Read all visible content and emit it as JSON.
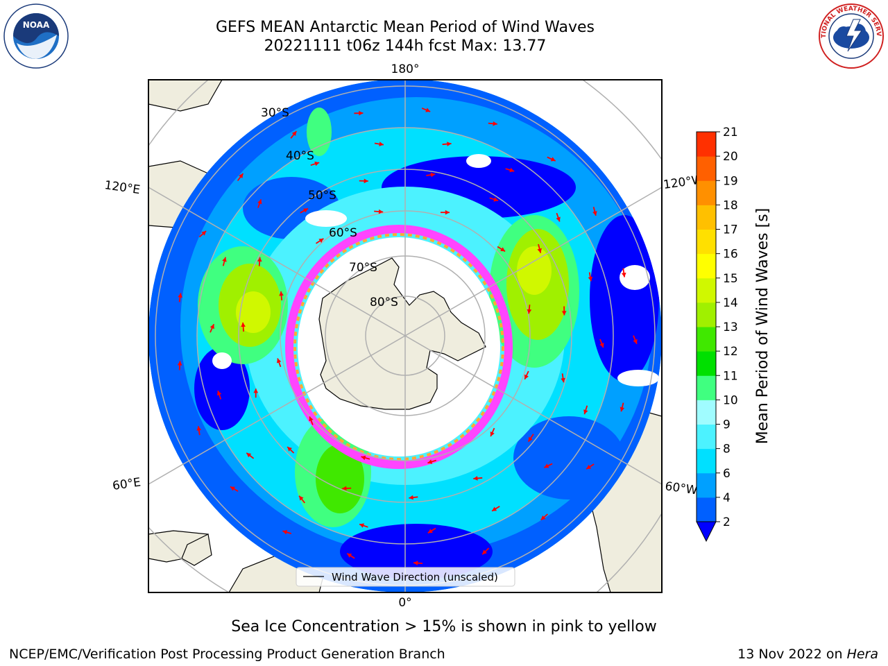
{
  "header": {
    "title_line1": "GEFS MEAN Antarctic Mean Period of Wind Waves",
    "title_line2": "20221111 t06z 144h fcst   Max: 13.77"
  },
  "logos": {
    "left": "noaa-logo",
    "left_ring_text": "NATIONAL OCEANIC AND ATMOSPHERIC ADMINISTRATION · U.S. DEPARTMENT OF COMMERCE",
    "left_center_text": "NOAA",
    "right": "national-weather-service-logo",
    "right_ring_text": "NATIONAL WEATHER SERVICE"
  },
  "map": {
    "projection": "south-polar-stereographic",
    "longitude_labels": {
      "top": "180°",
      "bottom": "0°",
      "upper_left": "120°E",
      "lower_left": "60°E",
      "upper_right": "120°W",
      "lower_right": "60°W"
    },
    "latitude_labels": [
      "30°S",
      "40°S",
      "50°S",
      "60°S",
      "70°S",
      "80°S"
    ],
    "legend_label": "Wind Wave Direction (unscaled)",
    "arrow_color": "#ff0000",
    "land_color": "#efedde",
    "ice_edge_colors": [
      "#ff44ff",
      "#ffaa33"
    ]
  },
  "colorbar": {
    "label": "Mean Period of Wind Waves [s]",
    "ticks": [
      "2",
      "4",
      "6",
      "8",
      "9",
      "10",
      "11",
      "12",
      "13",
      "14",
      "15",
      "16",
      "17",
      "18",
      "19",
      "20",
      "21"
    ],
    "colors": [
      "#0060ff",
      "#00a0ff",
      "#00e0ff",
      "#4cf2ff",
      "#a0fcff",
      "#40ff80",
      "#00e000",
      "#40e800",
      "#a0f000",
      "#d0f800",
      "#ffff00",
      "#ffe000",
      "#ffc000",
      "#ff9000",
      "#ff6000",
      "#ff3000"
    ],
    "underflow_color": "#0000ff"
  },
  "footer": {
    "caption": "Sea Ice Concentration > 15% is shown in pink to yellow",
    "credit": "NCEP/EMC/Verification Post Processing Product Generation Branch",
    "date": "13 Nov 2022 on",
    "machine": "Hera"
  }
}
